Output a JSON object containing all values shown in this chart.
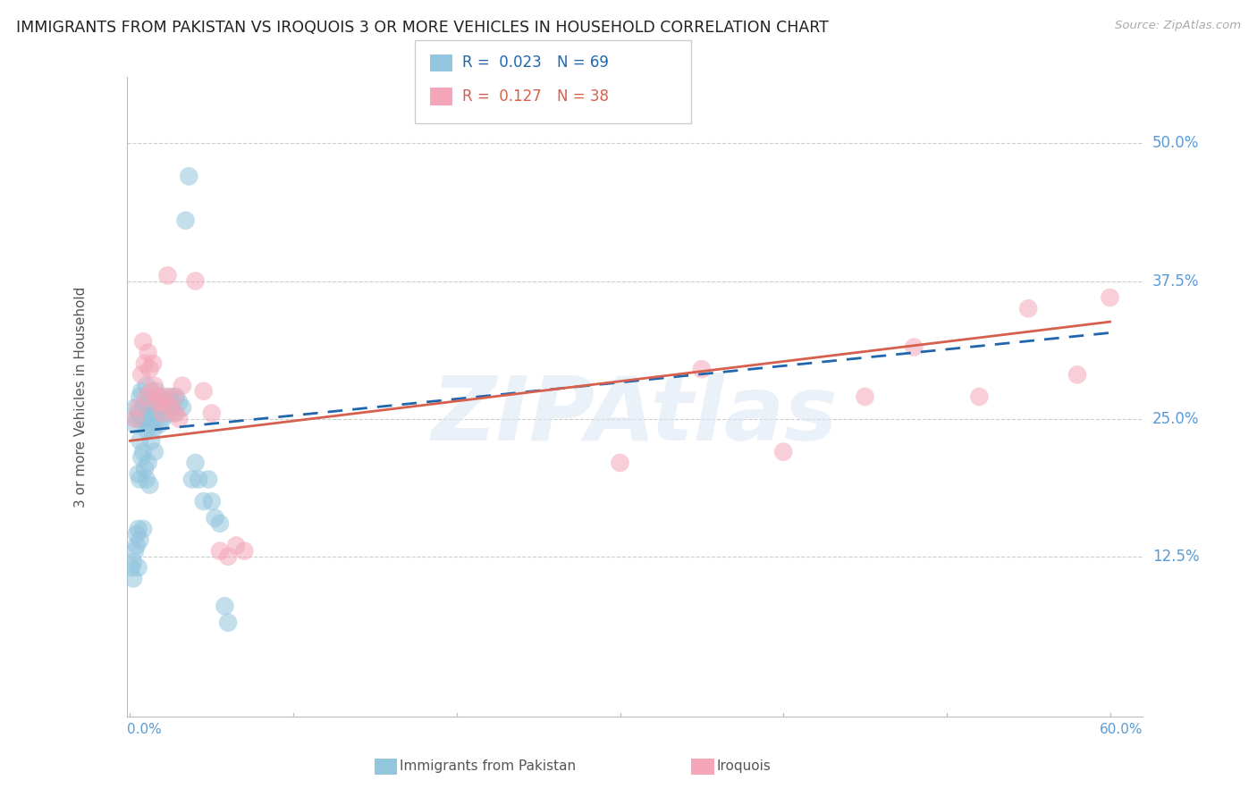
{
  "title": "IMMIGRANTS FROM PAKISTAN VS IROQUOIS 3 OR MORE VEHICLES IN HOUSEHOLD CORRELATION CHART",
  "source": "Source: ZipAtlas.com",
  "ylabel": "3 or more Vehicles in Household",
  "ytick_labels": [
    "50.0%",
    "37.5%",
    "25.0%",
    "12.5%"
  ],
  "ytick_values": [
    0.5,
    0.375,
    0.25,
    0.125
  ],
  "ylim": [
    -0.02,
    0.56
  ],
  "xlim": [
    -0.002,
    0.62
  ],
  "legend_r1": "0.023",
  "legend_n1": "69",
  "legend_r2": "0.127",
  "legend_n2": "38",
  "blue_color": "#92c5de",
  "pink_color": "#f4a6b8",
  "blue_line_color": "#2166ac",
  "pink_line_color": "#d6604d",
  "tick_label_color": "#5b9bd5",
  "watermark": "ZIPAtlas",
  "blue_scatter_x": [
    0.001,
    0.002,
    0.002,
    0.003,
    0.003,
    0.003,
    0.004,
    0.004,
    0.004,
    0.005,
    0.005,
    0.005,
    0.005,
    0.006,
    0.006,
    0.006,
    0.006,
    0.007,
    0.007,
    0.007,
    0.008,
    0.008,
    0.008,
    0.009,
    0.009,
    0.01,
    0.01,
    0.01,
    0.01,
    0.011,
    0.011,
    0.012,
    0.012,
    0.012,
    0.013,
    0.013,
    0.014,
    0.014,
    0.015,
    0.015,
    0.016,
    0.016,
    0.017,
    0.018,
    0.018,
    0.019,
    0.02,
    0.021,
    0.022,
    0.023,
    0.024,
    0.025,
    0.026,
    0.027,
    0.028,
    0.03,
    0.032,
    0.034,
    0.036,
    0.038,
    0.04,
    0.042,
    0.045,
    0.048,
    0.05,
    0.052,
    0.055,
    0.058,
    0.06
  ],
  "blue_scatter_y": [
    0.115,
    0.12,
    0.105,
    0.13,
    0.245,
    0.26,
    0.135,
    0.145,
    0.25,
    0.115,
    0.15,
    0.2,
    0.255,
    0.14,
    0.195,
    0.23,
    0.27,
    0.215,
    0.25,
    0.275,
    0.15,
    0.22,
    0.26,
    0.205,
    0.25,
    0.195,
    0.24,
    0.265,
    0.28,
    0.21,
    0.255,
    0.19,
    0.245,
    0.27,
    0.23,
    0.265,
    0.24,
    0.27,
    0.22,
    0.26,
    0.25,
    0.275,
    0.265,
    0.245,
    0.27,
    0.26,
    0.25,
    0.26,
    0.265,
    0.255,
    0.27,
    0.265,
    0.26,
    0.255,
    0.27,
    0.265,
    0.26,
    0.43,
    0.47,
    0.195,
    0.21,
    0.195,
    0.175,
    0.195,
    0.175,
    0.16,
    0.155,
    0.08,
    0.065
  ],
  "pink_scatter_x": [
    0.003,
    0.005,
    0.007,
    0.008,
    0.009,
    0.01,
    0.011,
    0.012,
    0.013,
    0.014,
    0.015,
    0.016,
    0.018,
    0.019,
    0.02,
    0.022,
    0.023,
    0.025,
    0.027,
    0.028,
    0.03,
    0.032,
    0.04,
    0.045,
    0.05,
    0.055,
    0.06,
    0.065,
    0.07,
    0.3,
    0.35,
    0.4,
    0.45,
    0.48,
    0.52,
    0.55,
    0.58,
    0.6
  ],
  "pink_scatter_y": [
    0.25,
    0.26,
    0.29,
    0.32,
    0.3,
    0.27,
    0.31,
    0.295,
    0.275,
    0.3,
    0.28,
    0.265,
    0.27,
    0.265,
    0.255,
    0.27,
    0.38,
    0.26,
    0.27,
    0.255,
    0.25,
    0.28,
    0.375,
    0.275,
    0.255,
    0.13,
    0.125,
    0.135,
    0.13,
    0.21,
    0.295,
    0.22,
    0.27,
    0.315,
    0.27,
    0.35,
    0.29,
    0.36
  ],
  "blue_line_intercept": 0.238,
  "blue_line_slope": 0.15,
  "pink_line_intercept": 0.23,
  "pink_line_slope": 0.18
}
